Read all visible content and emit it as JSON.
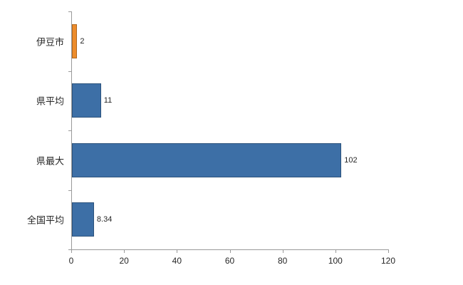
{
  "chart_data": {
    "type": "bar",
    "orientation": "horizontal",
    "title": "",
    "xlabel": "",
    "ylabel": "",
    "categories": [
      "伊豆市",
      "県平均",
      "県最大",
      "全国平均"
    ],
    "values": [
      2,
      11,
      102,
      8.34
    ],
    "value_labels": [
      "2",
      "11",
      "102",
      "8.34"
    ],
    "bar_colors": [
      "#ED8C2B",
      "#3D6FA6",
      "#3D6FA6",
      "#3D6FA6"
    ],
    "xlim": [
      0,
      120
    ],
    "xticks": [
      0,
      20,
      40,
      60,
      80,
      100,
      120
    ],
    "xtick_labels": [
      "0",
      "20",
      "40",
      "60",
      "80",
      "100",
      "120"
    ],
    "grid": false,
    "legend": false,
    "axis_color": "#9a9a9a",
    "text_color": "#262626"
  }
}
